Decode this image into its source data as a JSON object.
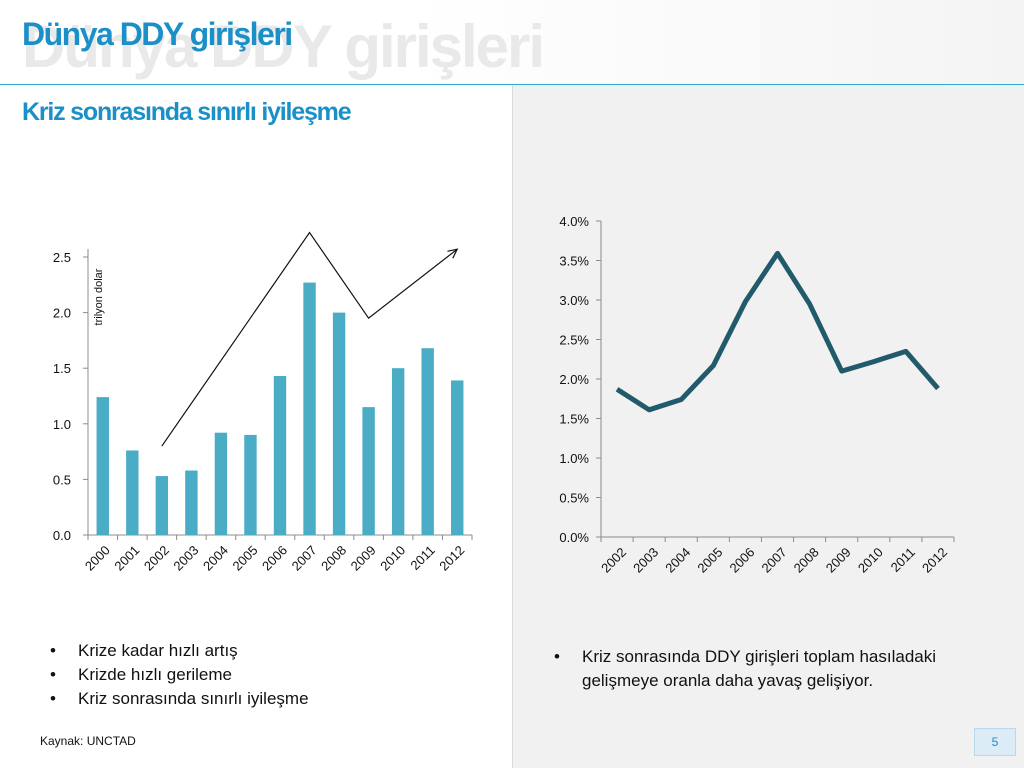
{
  "title": "Dünya DDY girişleri",
  "subtitle": "Kriz sonrasında sınırlı iyileşme",
  "left_bullets": [
    "Krize kadar hızlı artış",
    "Krizde hızlı gerileme",
    "Kriz sonrasında sınırlı iyileşme"
  ],
  "right_bullets": [
    "Kriz sonrasında DDY girişleri toplam hasıladaki gelişmeye oranla daha yavaş gelişiyor."
  ],
  "source": "Kaynak: UNCTAD",
  "page_number": "5",
  "colors": {
    "title": "#1b8fc8",
    "bar": "#4bacc6",
    "line": "#215a6b"
  },
  "chart_data": [
    {
      "type": "bar",
      "categories": [
        "2000",
        "2001",
        "2002",
        "2003",
        "2004",
        "2005",
        "2006",
        "2007",
        "2008",
        "2009",
        "2010",
        "2011",
        "2012"
      ],
      "values": [
        1.24,
        0.76,
        0.53,
        0.58,
        0.92,
        0.9,
        1.43,
        2.27,
        2.0,
        1.15,
        1.5,
        1.68,
        1.39
      ],
      "ylabel": "trilyon dolar",
      "ylim": [
        0,
        2.5
      ],
      "yticks": [
        0.0,
        0.5,
        1.0,
        1.5,
        2.0,
        2.5
      ],
      "ytick_labels": [
        "0.0",
        "0.5",
        "1.0",
        "1.5",
        "2.0",
        "2.5"
      ],
      "trend_annotation": {
        "x": [
          "2002",
          "2007",
          "2009",
          "2012"
        ],
        "y": [
          0.8,
          2.72,
          1.95,
          2.57
        ],
        "arrow_at_end": true
      }
    },
    {
      "type": "line",
      "categories": [
        "2002",
        "2003",
        "2004",
        "2005",
        "2006",
        "2007",
        "2008",
        "2009",
        "2010",
        "2011",
        "2012"
      ],
      "values": [
        0.0187,
        0.0161,
        0.0174,
        0.0217,
        0.0298,
        0.0359,
        0.0295,
        0.021,
        0.0222,
        0.0235,
        0.0188
      ],
      "ylim": [
        0,
        0.04
      ],
      "yticks": [
        0.0,
        0.005,
        0.01,
        0.015,
        0.02,
        0.025,
        0.03,
        0.035,
        0.04
      ],
      "ytick_labels": [
        "0.0%",
        "0.5%",
        "1.0%",
        "1.5%",
        "2.0%",
        "2.5%",
        "3.0%",
        "3.5%",
        "4.0%"
      ]
    }
  ]
}
